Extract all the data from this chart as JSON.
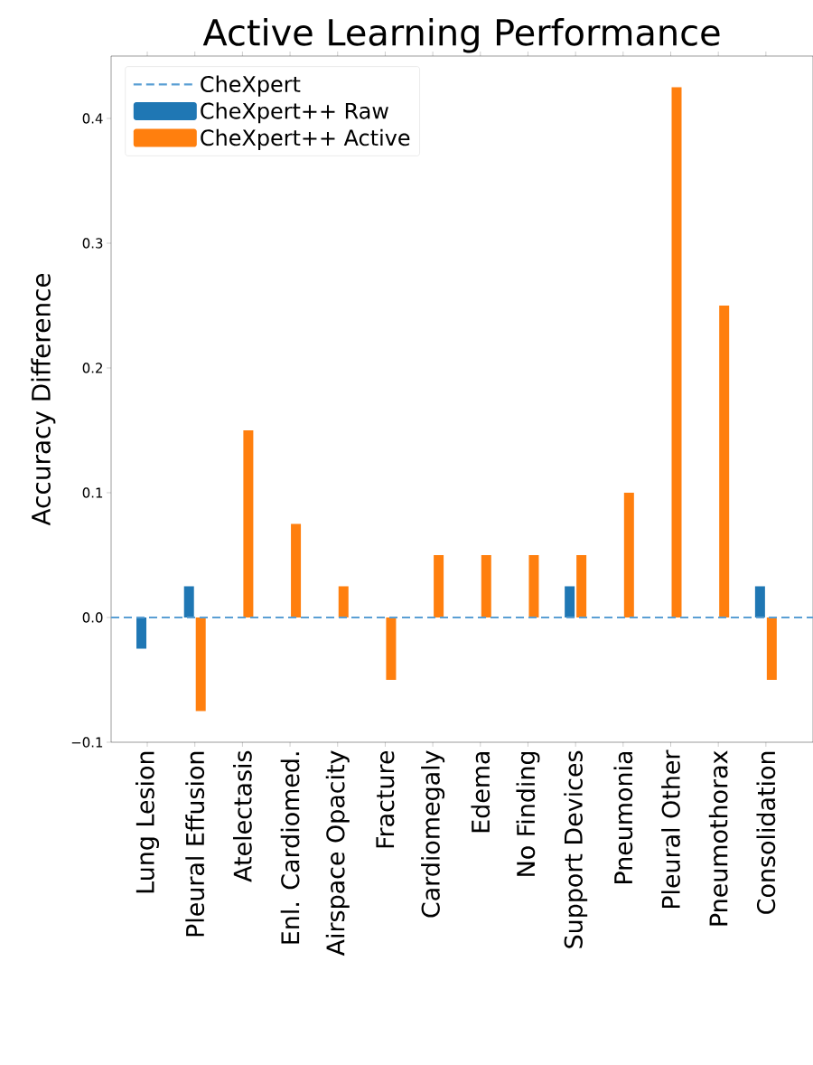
{
  "chart_data": {
    "type": "bar",
    "title": "Active Learning Performance",
    "ylabel": "Accuracy Difference",
    "categories": [
      "Lung Lesion",
      "Pleural Effusion",
      "Atelectasis",
      "Enl. Cardiomed.",
      "Airspace Opacity",
      "Fracture",
      "Cardiomegaly",
      "Edema",
      "No Finding",
      "Support Devices",
      "Pneumonia",
      "Pleural Other",
      "Pneumothorax",
      "Consolidation"
    ],
    "series": [
      {
        "name": "CheXpert++ Raw",
        "color": "#1f77b4",
        "values": [
          -0.025,
          0.025,
          null,
          null,
          null,
          null,
          null,
          null,
          null,
          0.025,
          null,
          null,
          null,
          0.025
        ]
      },
      {
        "name": "CheXpert++ Active",
        "color": "#ff7f0e",
        "values": [
          null,
          -0.075,
          0.15,
          0.075,
          0.025,
          -0.05,
          0.05,
          0.05,
          0.05,
          0.05,
          0.1,
          0.425,
          0.25,
          -0.05
        ]
      }
    ],
    "ref_lines": [
      {
        "axis": "y",
        "value": 0,
        "label": "CheXpert",
        "color": "#5a9fd4",
        "line_style": "dashed"
      }
    ],
    "ylim": [
      -0.1,
      0.45
    ],
    "yticks": [
      {
        "value": -0.1,
        "label": "−0.1"
      },
      {
        "value": 0,
        "label": "0.0"
      },
      {
        "value": 0.1,
        "label": "0.1"
      },
      {
        "value": 0.2,
        "label": "0.2"
      },
      {
        "value": 0.3,
        "label": "0.3"
      },
      {
        "value": 0.4,
        "label": "0.4"
      }
    ],
    "legend": "top left",
    "grid": false
  }
}
